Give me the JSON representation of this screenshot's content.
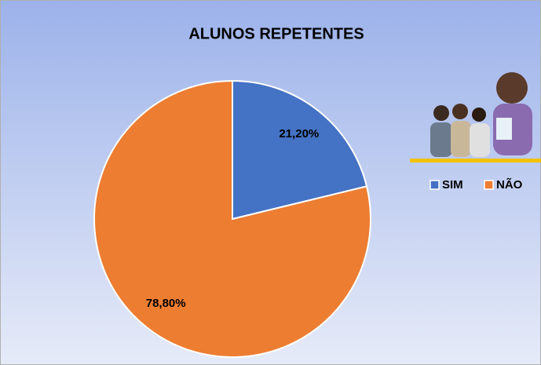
{
  "chart_data": {
    "type": "pie",
    "title": "ALUNOS REPETENTES",
    "categories": [
      "SIM",
      "NÃO"
    ],
    "values": [
      21.2,
      78.8
    ],
    "value_labels": [
      "21,20%",
      "78,80%"
    ],
    "colors": [
      "#4472c4",
      "#ed7d31"
    ],
    "legend": "right"
  }
}
